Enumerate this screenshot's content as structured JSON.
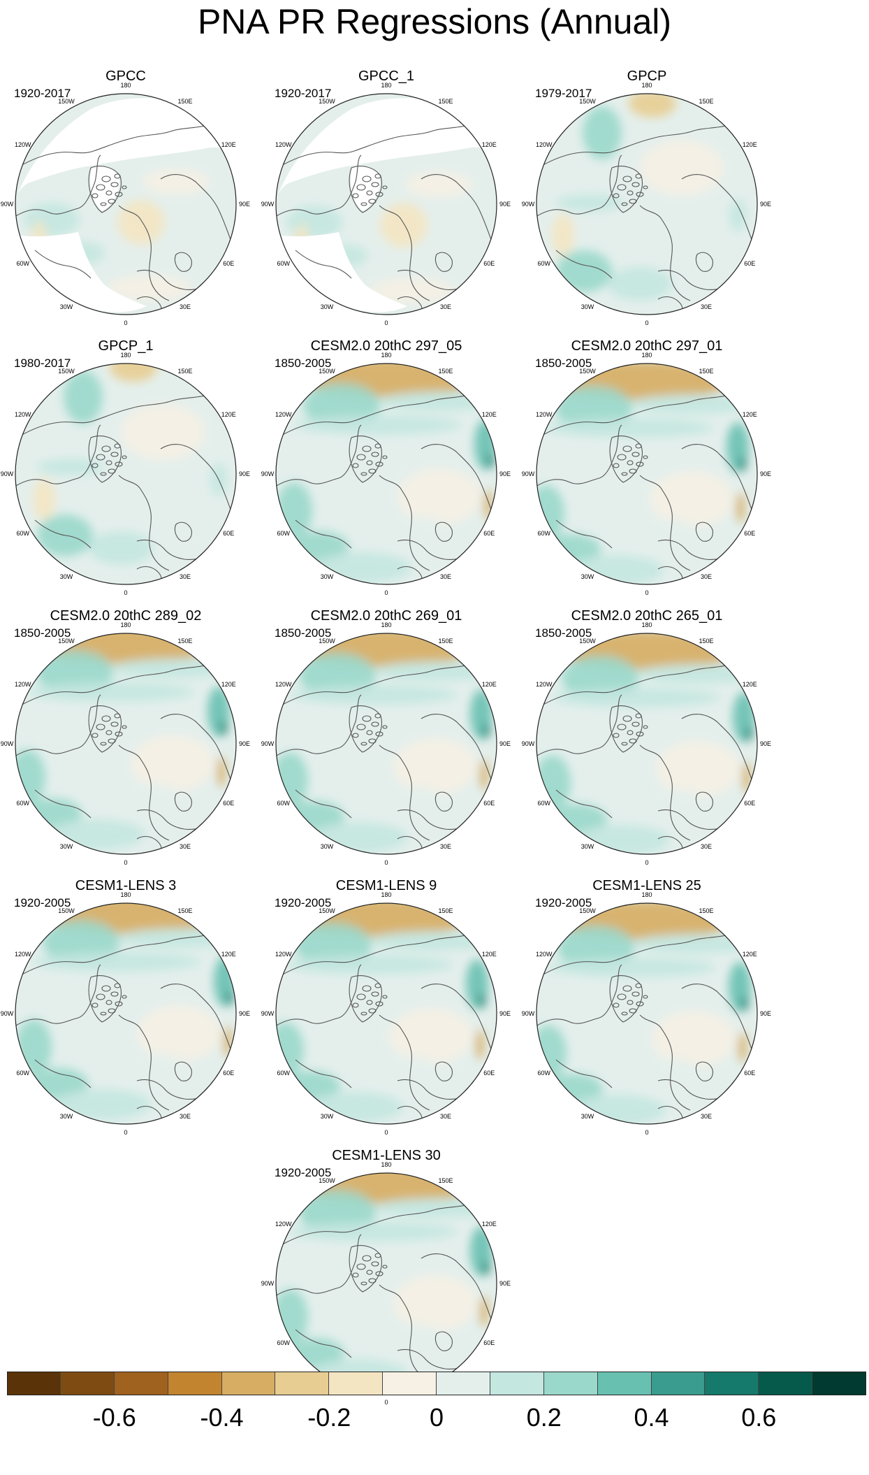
{
  "title": "PNA PR Regressions (Annual)",
  "lon_labels": [
    "180",
    "150E",
    "120E",
    "90E",
    "60E",
    "30E",
    "0",
    "30W",
    "60W",
    "90W",
    "120W",
    "150W"
  ],
  "panels": [
    {
      "title": "GPCC",
      "period": "1920-2017",
      "dataset": "obs_gpcc"
    },
    {
      "title": "GPCC_1",
      "period": "1920-2017",
      "dataset": "obs_gpcc"
    },
    {
      "title": "GPCP",
      "period": "1979-2017",
      "dataset": "obs_gpcp"
    },
    {
      "title": "GPCP_1",
      "period": "1980-2017",
      "dataset": "obs_gpcp"
    },
    {
      "title": "CESM2.0 20thC 297_05",
      "period": "1850-2005",
      "dataset": "model"
    },
    {
      "title": "CESM2.0 20thC 297_01",
      "period": "1850-2005",
      "dataset": "model"
    },
    {
      "title": "CESM2.0 20thC 289_02",
      "period": "1850-2005",
      "dataset": "model"
    },
    {
      "title": "CESM2.0 20thC 269_01",
      "period": "1850-2005",
      "dataset": "model"
    },
    {
      "title": "CESM2.0 20thC 265_01",
      "period": "1850-2005",
      "dataset": "model"
    },
    {
      "title": "CESM1-LENS 3",
      "period": "1920-2005",
      "dataset": "model"
    },
    {
      "title": "CESM1-LENS 9",
      "period": "1920-2005",
      "dataset": "model"
    },
    {
      "title": "CESM1-LENS 25",
      "period": "1920-2005",
      "dataset": "model"
    },
    {
      "title": "CESM1-LENS 30",
      "period": "1920-2005",
      "dataset": "model"
    }
  ],
  "colorbar": {
    "labels": [
      "-0.6",
      "-0.4",
      "-0.2",
      "0",
      "0.2",
      "0.4",
      "0.6"
    ],
    "label_values": [
      -0.6,
      -0.4,
      -0.2,
      0,
      0.2,
      0.4,
      0.6
    ],
    "range": [
      -0.8,
      0.8
    ],
    "colors": [
      "#5a3408",
      "#7e4c12",
      "#a0621f",
      "#c2842f",
      "#d6ad62",
      "#e8cd92",
      "#f4e5c2",
      "#f6f1e4",
      "#e4efec",
      "#c4e7e0",
      "#9ad8cb",
      "#68c0b1",
      "#3a9c8e",
      "#157a6c",
      "#065a4c",
      "#013a30"
    ]
  }
}
